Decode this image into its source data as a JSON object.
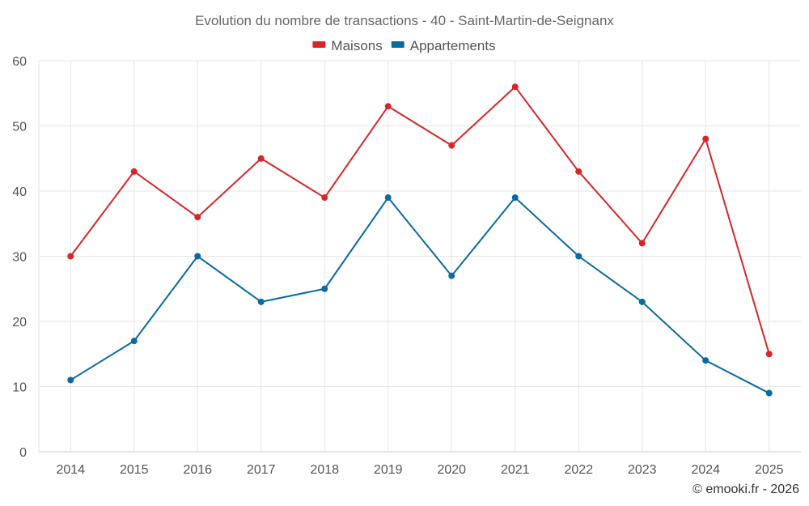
{
  "chart_data": {
    "type": "line",
    "title": "Evolution du nombre de transactions - 40 - Saint-Martin-de-Seignanx",
    "categories": [
      "2014",
      "2015",
      "2016",
      "2017",
      "2018",
      "2019",
      "2020",
      "2021",
      "2022",
      "2023",
      "2024",
      "2025"
    ],
    "series": [
      {
        "name": "Maisons",
        "color": "#d62728",
        "values": [
          30,
          43,
          36,
          45,
          39,
          53,
          47,
          56,
          43,
          32,
          48,
          15
        ]
      },
      {
        "name": "Appartements",
        "color": "#0b6a9f",
        "values": [
          11,
          17,
          30,
          23,
          25,
          39,
          27,
          39,
          30,
          23,
          14,
          9
        ]
      }
    ],
    "ylim": [
      0,
      60
    ],
    "yticks": [
      0,
      10,
      20,
      30,
      40,
      50,
      60
    ],
    "grid": true,
    "legend": "top-center",
    "xlabel": "",
    "ylabel": ""
  },
  "credit": "© emooki.fr - 2026"
}
